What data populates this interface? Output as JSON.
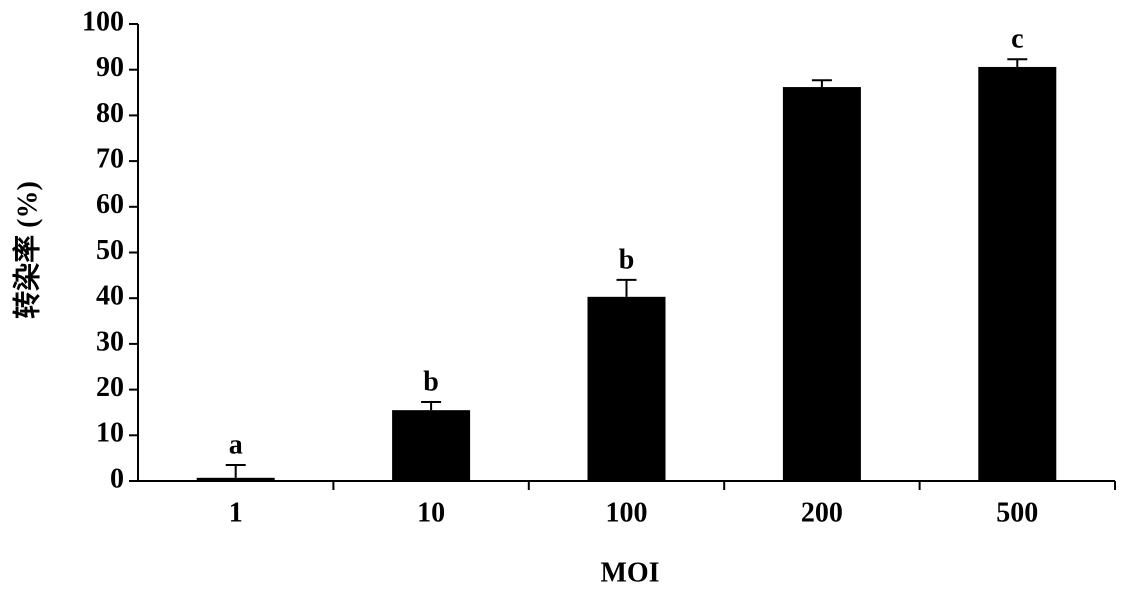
{
  "chart_data": {
    "type": "bar",
    "x_label": "MOI",
    "y_label": "转染率 (%)",
    "categories": [
      "1",
      "10",
      "100",
      "200",
      "500"
    ],
    "values": [
      0.7,
      15.5,
      40.3,
      86.2,
      90.6
    ],
    "errors": [
      2.8,
      1.8,
      3.7,
      1.5,
      1.7
    ],
    "significance_labels": [
      "a",
      "b",
      "b",
      null,
      "c"
    ],
    "color": "#000000",
    "ylim": [
      0,
      100
    ],
    "yticks": [
      0,
      10,
      20,
      30,
      40,
      50,
      60,
      70,
      80,
      90,
      100
    ]
  }
}
